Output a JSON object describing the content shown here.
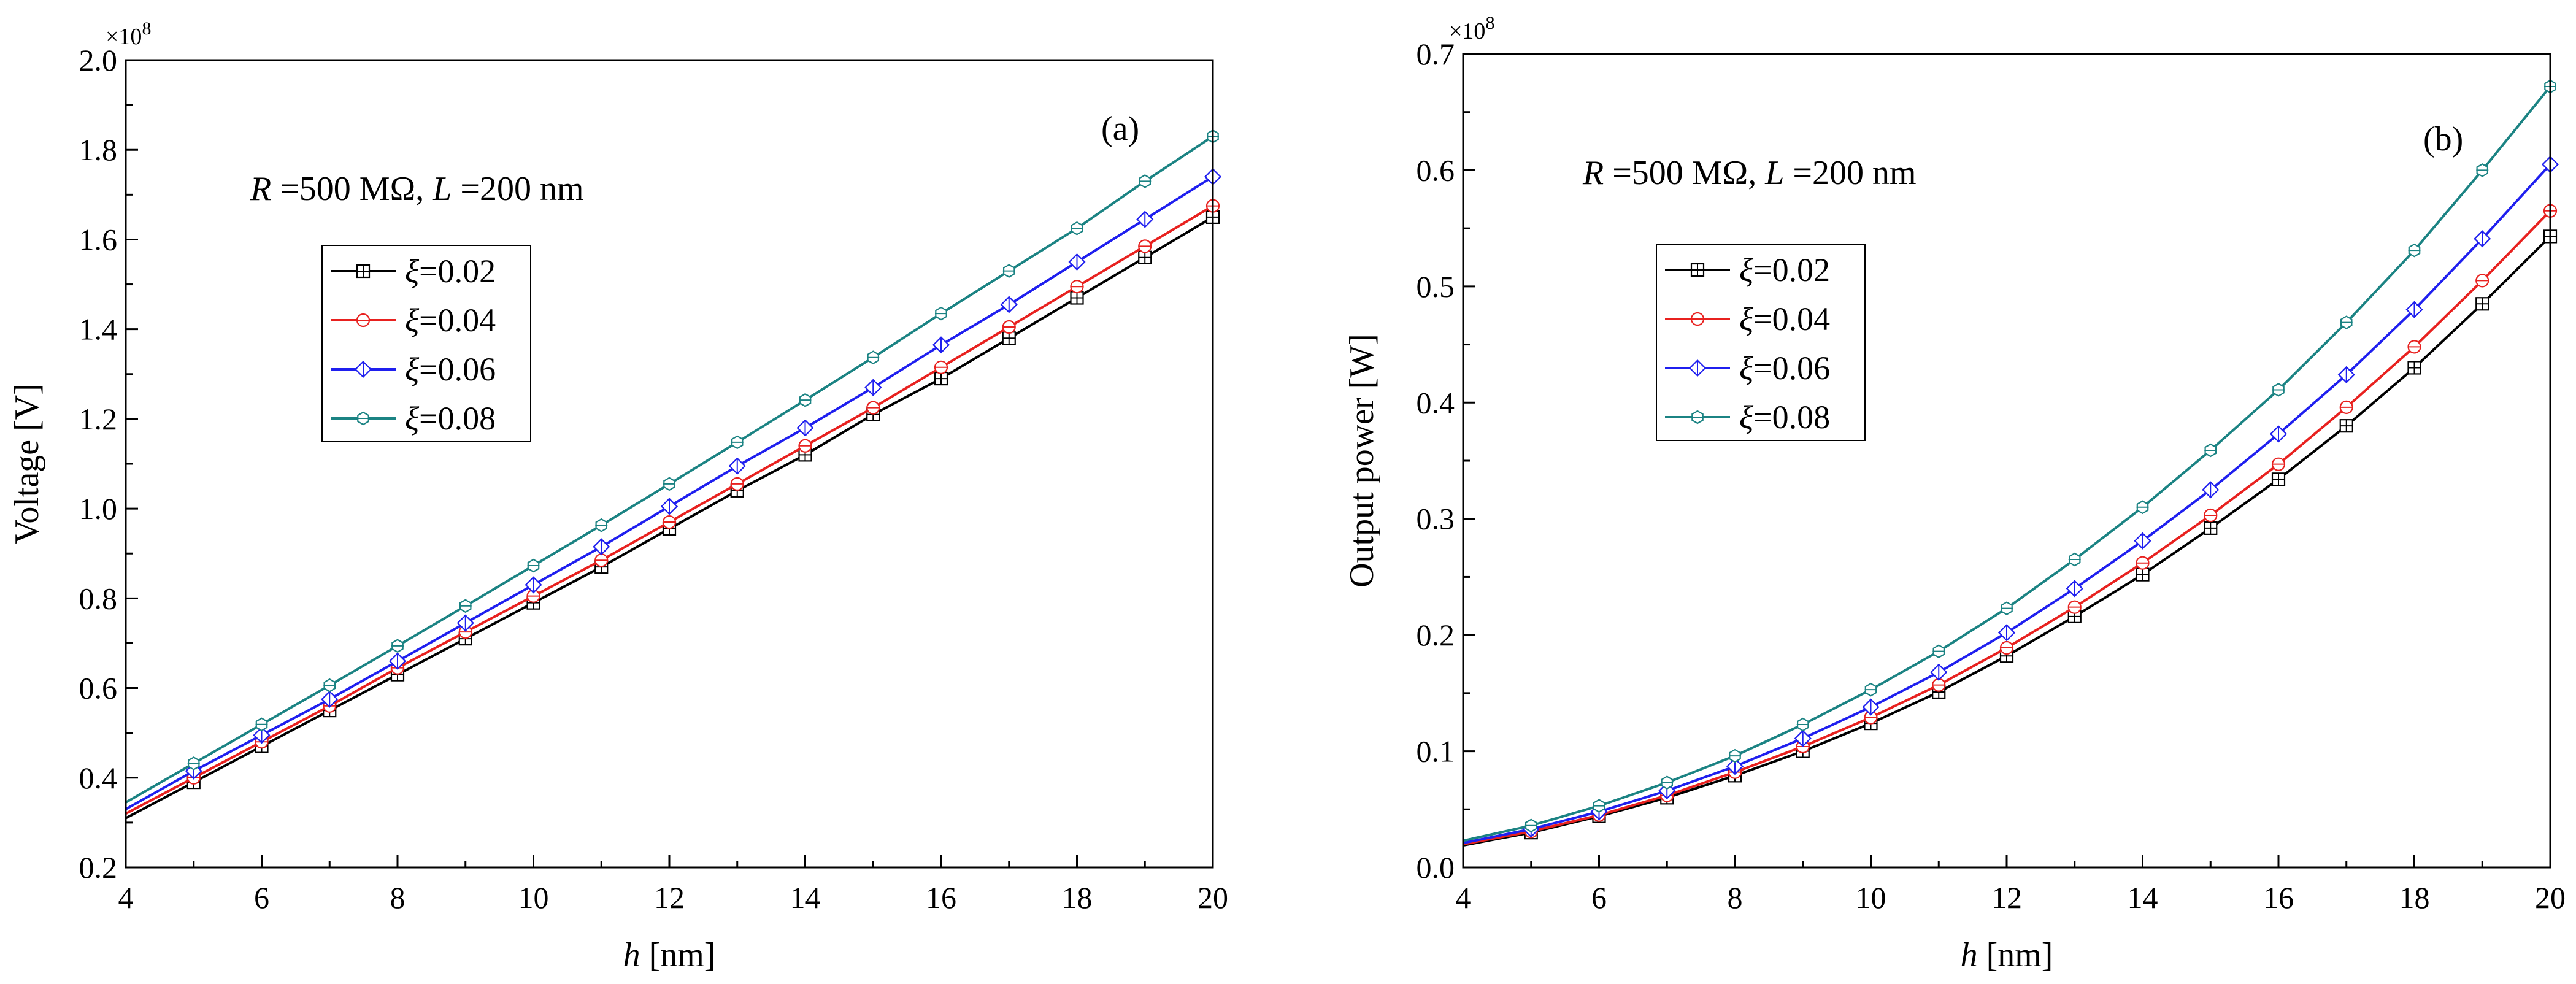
{
  "chart_data": [
    {
      "type": "line",
      "panel_label": "(a)",
      "annotation": {
        "R_symbol": "R",
        "R_value": " =500 MΩ, ",
        "L_symbol": "L",
        "L_value": " =200 nm"
      },
      "xlabel": {
        "symbol": "h",
        "unit": " [nm]"
      },
      "ylabel": "Voltage [V]",
      "multiplier": {
        "base": "×10",
        "exp": "8"
      },
      "xlim": [
        4,
        20
      ],
      "ylim": [
        0.2,
        2.0
      ],
      "xticks": [
        4,
        6,
        8,
        10,
        12,
        14,
        16,
        18,
        20
      ],
      "xtick_labels": [
        "4",
        "6",
        "8",
        "10",
        "12",
        "14",
        "16",
        "18",
        "20"
      ],
      "yticks": [
        0.2,
        0.4,
        0.6,
        0.8,
        1.0,
        1.2,
        1.4,
        1.6,
        1.8,
        2.0
      ],
      "ytick_labels": [
        "0.2",
        "0.4",
        "0.6",
        "0.8",
        "1.0",
        "1.2",
        "1.4",
        "1.6",
        "1.8",
        "2.0"
      ],
      "x": [
        4,
        5,
        6,
        7,
        8,
        9,
        10,
        11,
        12,
        13,
        14,
        15,
        16,
        17,
        18,
        19,
        20
      ],
      "series": [
        {
          "name": "=0.02",
          "symbol": "ξ",
          "color": "#000000",
          "marker": "square",
          "values": [
            0.31,
            0.39,
            0.47,
            0.55,
            0.63,
            0.71,
            0.79,
            0.87,
            0.955,
            1.04,
            1.12,
            1.21,
            1.29,
            1.38,
            1.47,
            1.56,
            1.65
          ]
        },
        {
          "name": "=0.04",
          "symbol": "ξ",
          "color": "#e8211f",
          "marker": "circle",
          "values": [
            0.32,
            0.4,
            0.48,
            0.56,
            0.645,
            0.725,
            0.805,
            0.885,
            0.97,
            1.055,
            1.14,
            1.225,
            1.315,
            1.405,
            1.495,
            1.585,
            1.675
          ]
        },
        {
          "name": "=0.06",
          "symbol": "ξ",
          "color": "#1f1fef",
          "marker": "diamond",
          "values": [
            0.33,
            0.415,
            0.495,
            0.575,
            0.66,
            0.745,
            0.83,
            0.915,
            1.005,
            1.095,
            1.18,
            1.27,
            1.365,
            1.455,
            1.55,
            1.645,
            1.74
          ]
        },
        {
          "name": "=0.08",
          "symbol": "ξ",
          "color": "#1b8383",
          "marker": "hexagon",
          "values": [
            0.345,
            0.432,
            0.519,
            0.606,
            0.694,
            0.783,
            0.873,
            0.963,
            1.055,
            1.148,
            1.242,
            1.337,
            1.435,
            1.53,
            1.625,
            1.73,
            1.83
          ]
        }
      ]
    },
    {
      "type": "line",
      "panel_label": "(b)",
      "annotation": {
        "R_symbol": "R",
        "R_value": " =500 MΩ, ",
        "L_symbol": "L",
        "L_value": " =200 nm"
      },
      "xlabel": {
        "symbol": "h",
        "unit": " [nm]"
      },
      "ylabel": "Output power [W]",
      "multiplier": {
        "base": "×10",
        "exp": "8"
      },
      "xlim": [
        4,
        20
      ],
      "ylim": [
        0.0,
        0.7
      ],
      "xticks": [
        4,
        6,
        8,
        10,
        12,
        14,
        16,
        18,
        20
      ],
      "xtick_labels": [
        "4",
        "6",
        "8",
        "10",
        "12",
        "14",
        "16",
        "18",
        "20"
      ],
      "yticks": [
        0.0,
        0.1,
        0.2,
        0.3,
        0.4,
        0.5,
        0.6,
        0.7
      ],
      "ytick_labels": [
        "0.0",
        "0.1",
        "0.2",
        "0.3",
        "0.4",
        "0.5",
        "0.6",
        "0.7"
      ],
      "x": [
        4,
        5,
        6,
        7,
        8,
        9,
        10,
        11,
        12,
        13,
        14,
        15,
        16,
        17,
        18,
        19,
        20
      ],
      "series": [
        {
          "name": "=0.02",
          "symbol": "ξ",
          "color": "#000000",
          "marker": "square",
          "values": [
            0.019,
            0.03,
            0.044,
            0.06,
            0.079,
            0.1,
            0.124,
            0.151,
            0.182,
            0.216,
            0.252,
            0.292,
            0.334,
            0.38,
            0.43,
            0.485,
            0.543
          ]
        },
        {
          "name": "=0.04",
          "symbol": "ξ",
          "color": "#e8211f",
          "marker": "circle",
          "values": [
            0.02,
            0.031,
            0.045,
            0.062,
            0.082,
            0.104,
            0.129,
            0.157,
            0.189,
            0.224,
            0.262,
            0.303,
            0.347,
            0.396,
            0.448,
            0.505,
            0.565
          ]
        },
        {
          "name": "=0.06",
          "symbol": "ξ",
          "color": "#1f1fef",
          "marker": "diamond",
          "values": [
            0.021,
            0.033,
            0.048,
            0.066,
            0.087,
            0.111,
            0.138,
            0.168,
            0.202,
            0.24,
            0.281,
            0.325,
            0.373,
            0.424,
            0.48,
            0.541,
            0.605
          ]
        },
        {
          "name": "=0.08",
          "symbol": "ξ",
          "color": "#1b8383",
          "marker": "hexagon",
          "values": [
            0.023,
            0.036,
            0.053,
            0.073,
            0.096,
            0.123,
            0.153,
            0.186,
            0.223,
            0.265,
            0.31,
            0.359,
            0.411,
            0.469,
            0.531,
            0.6,
            0.672
          ]
        }
      ]
    }
  ]
}
